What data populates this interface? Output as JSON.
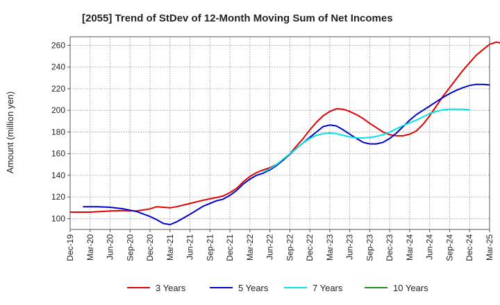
{
  "chart_data": {
    "type": "line",
    "title": "[2055]  Trend of StDev of 12-Month Moving Sum of Net Incomes",
    "ylabel": "Amount (million yen)",
    "xlabel": "",
    "ylim": [
      90,
      268
    ],
    "y_ticks": [
      100,
      120,
      140,
      160,
      180,
      200,
      220,
      240,
      260
    ],
    "x_ticks": [
      "Dec-19",
      "Mar-20",
      "Jun-20",
      "Sep-20",
      "Dec-20",
      "Mar-21",
      "Jun-21",
      "Sep-21",
      "Dec-21",
      "Mar-22",
      "Jun-22",
      "Sep-22",
      "Dec-22",
      "Mar-23",
      "Jun-23",
      "Sep-23",
      "Dec-23",
      "Mar-24",
      "Jun-24",
      "Sep-24",
      "Dec-24",
      "Mar-25"
    ],
    "x_range_months": [
      0,
      63
    ],
    "grid": true,
    "legend_position": "bottom",
    "series": [
      {
        "name": "3 Years",
        "color": "#e00000",
        "points": [
          [
            0,
            106
          ],
          [
            3,
            106
          ],
          [
            6,
            107
          ],
          [
            8,
            107.5
          ],
          [
            10,
            107
          ],
          [
            12,
            109
          ],
          [
            13,
            111
          ],
          [
            14,
            110.5
          ],
          [
            15,
            110
          ],
          [
            16,
            111
          ],
          [
            18,
            114
          ],
          [
            20,
            117
          ],
          [
            22,
            119.5
          ],
          [
            23,
            121
          ],
          [
            24,
            124
          ],
          [
            25,
            128
          ],
          [
            26,
            134
          ],
          [
            27,
            139
          ],
          [
            28,
            142.5
          ],
          [
            29,
            145
          ],
          [
            30,
            147
          ],
          [
            31,
            150
          ],
          [
            32,
            154
          ],
          [
            33,
            160
          ],
          [
            34,
            167
          ],
          [
            35,
            174
          ],
          [
            36,
            182
          ],
          [
            37,
            189
          ],
          [
            38,
            195
          ],
          [
            39,
            199
          ],
          [
            40,
            201.5
          ],
          [
            41,
            201
          ],
          [
            42,
            199
          ],
          [
            43,
            196
          ],
          [
            44,
            192.5
          ],
          [
            45,
            188
          ],
          [
            46,
            184
          ],
          [
            47,
            180
          ],
          [
            48,
            177.5
          ],
          [
            49,
            176.5
          ],
          [
            50,
            176.5
          ],
          [
            51,
            178
          ],
          [
            52,
            181
          ],
          [
            53,
            187
          ],
          [
            54,
            195
          ],
          [
            55,
            204
          ],
          [
            56,
            213
          ],
          [
            57,
            221
          ],
          [
            58,
            229
          ],
          [
            59,
            237
          ],
          [
            60,
            244
          ],
          [
            61,
            251
          ],
          [
            62,
            256
          ],
          [
            63,
            261
          ],
          [
            64,
            263
          ],
          [
            65,
            262
          ],
          [
            66,
            258.5
          ]
        ]
      },
      {
        "name": "5 Years",
        "color": "#0000cc",
        "points": [
          [
            2,
            111
          ],
          [
            4,
            111
          ],
          [
            6,
            110.5
          ],
          [
            8,
            109
          ],
          [
            10,
            106.5
          ],
          [
            12,
            102
          ],
          [
            13,
            99
          ],
          [
            14,
            95.5
          ],
          [
            15,
            94.5
          ],
          [
            16,
            97
          ],
          [
            18,
            104
          ],
          [
            20,
            111.5
          ],
          [
            22,
            116.5
          ],
          [
            23,
            118
          ],
          [
            24,
            121.5
          ],
          [
            25,
            126
          ],
          [
            26,
            132
          ],
          [
            27,
            136.5
          ],
          [
            28,
            140
          ],
          [
            29,
            142
          ],
          [
            30,
            145
          ],
          [
            31,
            149
          ],
          [
            32,
            154
          ],
          [
            33,
            159.5
          ],
          [
            34,
            165
          ],
          [
            35,
            170
          ],
          [
            36,
            175
          ],
          [
            37,
            180
          ],
          [
            38,
            185
          ],
          [
            39,
            186.5
          ],
          [
            40,
            185.5
          ],
          [
            41,
            182
          ],
          [
            42,
            178
          ],
          [
            43,
            174
          ],
          [
            44,
            170.5
          ],
          [
            45,
            169
          ],
          [
            46,
            169
          ],
          [
            47,
            170.5
          ],
          [
            48,
            174
          ],
          [
            49,
            179
          ],
          [
            50,
            185
          ],
          [
            51,
            191
          ],
          [
            52,
            196
          ],
          [
            53,
            200
          ],
          [
            54,
            204
          ],
          [
            55,
            208
          ],
          [
            56,
            212
          ],
          [
            57,
            215.5
          ],
          [
            58,
            218.5
          ],
          [
            59,
            221
          ],
          [
            60,
            223
          ],
          [
            61,
            224
          ],
          [
            62,
            224
          ],
          [
            63,
            223.5
          ]
        ]
      },
      {
        "name": "7 Years",
        "color": "#00e5e5",
        "points": [
          [
            29,
            143
          ],
          [
            30,
            146
          ],
          [
            31,
            150
          ],
          [
            32,
            155
          ],
          [
            33,
            160
          ],
          [
            34,
            165
          ],
          [
            35,
            170
          ],
          [
            36,
            174
          ],
          [
            37,
            177
          ],
          [
            38,
            178.5
          ],
          [
            39,
            179
          ],
          [
            40,
            178.5
          ],
          [
            41,
            177
          ],
          [
            42,
            175.5
          ],
          [
            43,
            174.5
          ],
          [
            44,
            174.5
          ],
          [
            45,
            175
          ],
          [
            46,
            176
          ],
          [
            47,
            177.5
          ],
          [
            48,
            180
          ],
          [
            49,
            183
          ],
          [
            50,
            186
          ],
          [
            51,
            188.5
          ],
          [
            52,
            191
          ],
          [
            53,
            194
          ],
          [
            54,
            197
          ],
          [
            55,
            199
          ],
          [
            56,
            200.5
          ],
          [
            57,
            201
          ],
          [
            58,
            201
          ],
          [
            59,
            201
          ],
          [
            60,
            200.5
          ]
        ]
      },
      {
        "name": "10 Years",
        "color": "#228b22",
        "points": []
      }
    ]
  }
}
